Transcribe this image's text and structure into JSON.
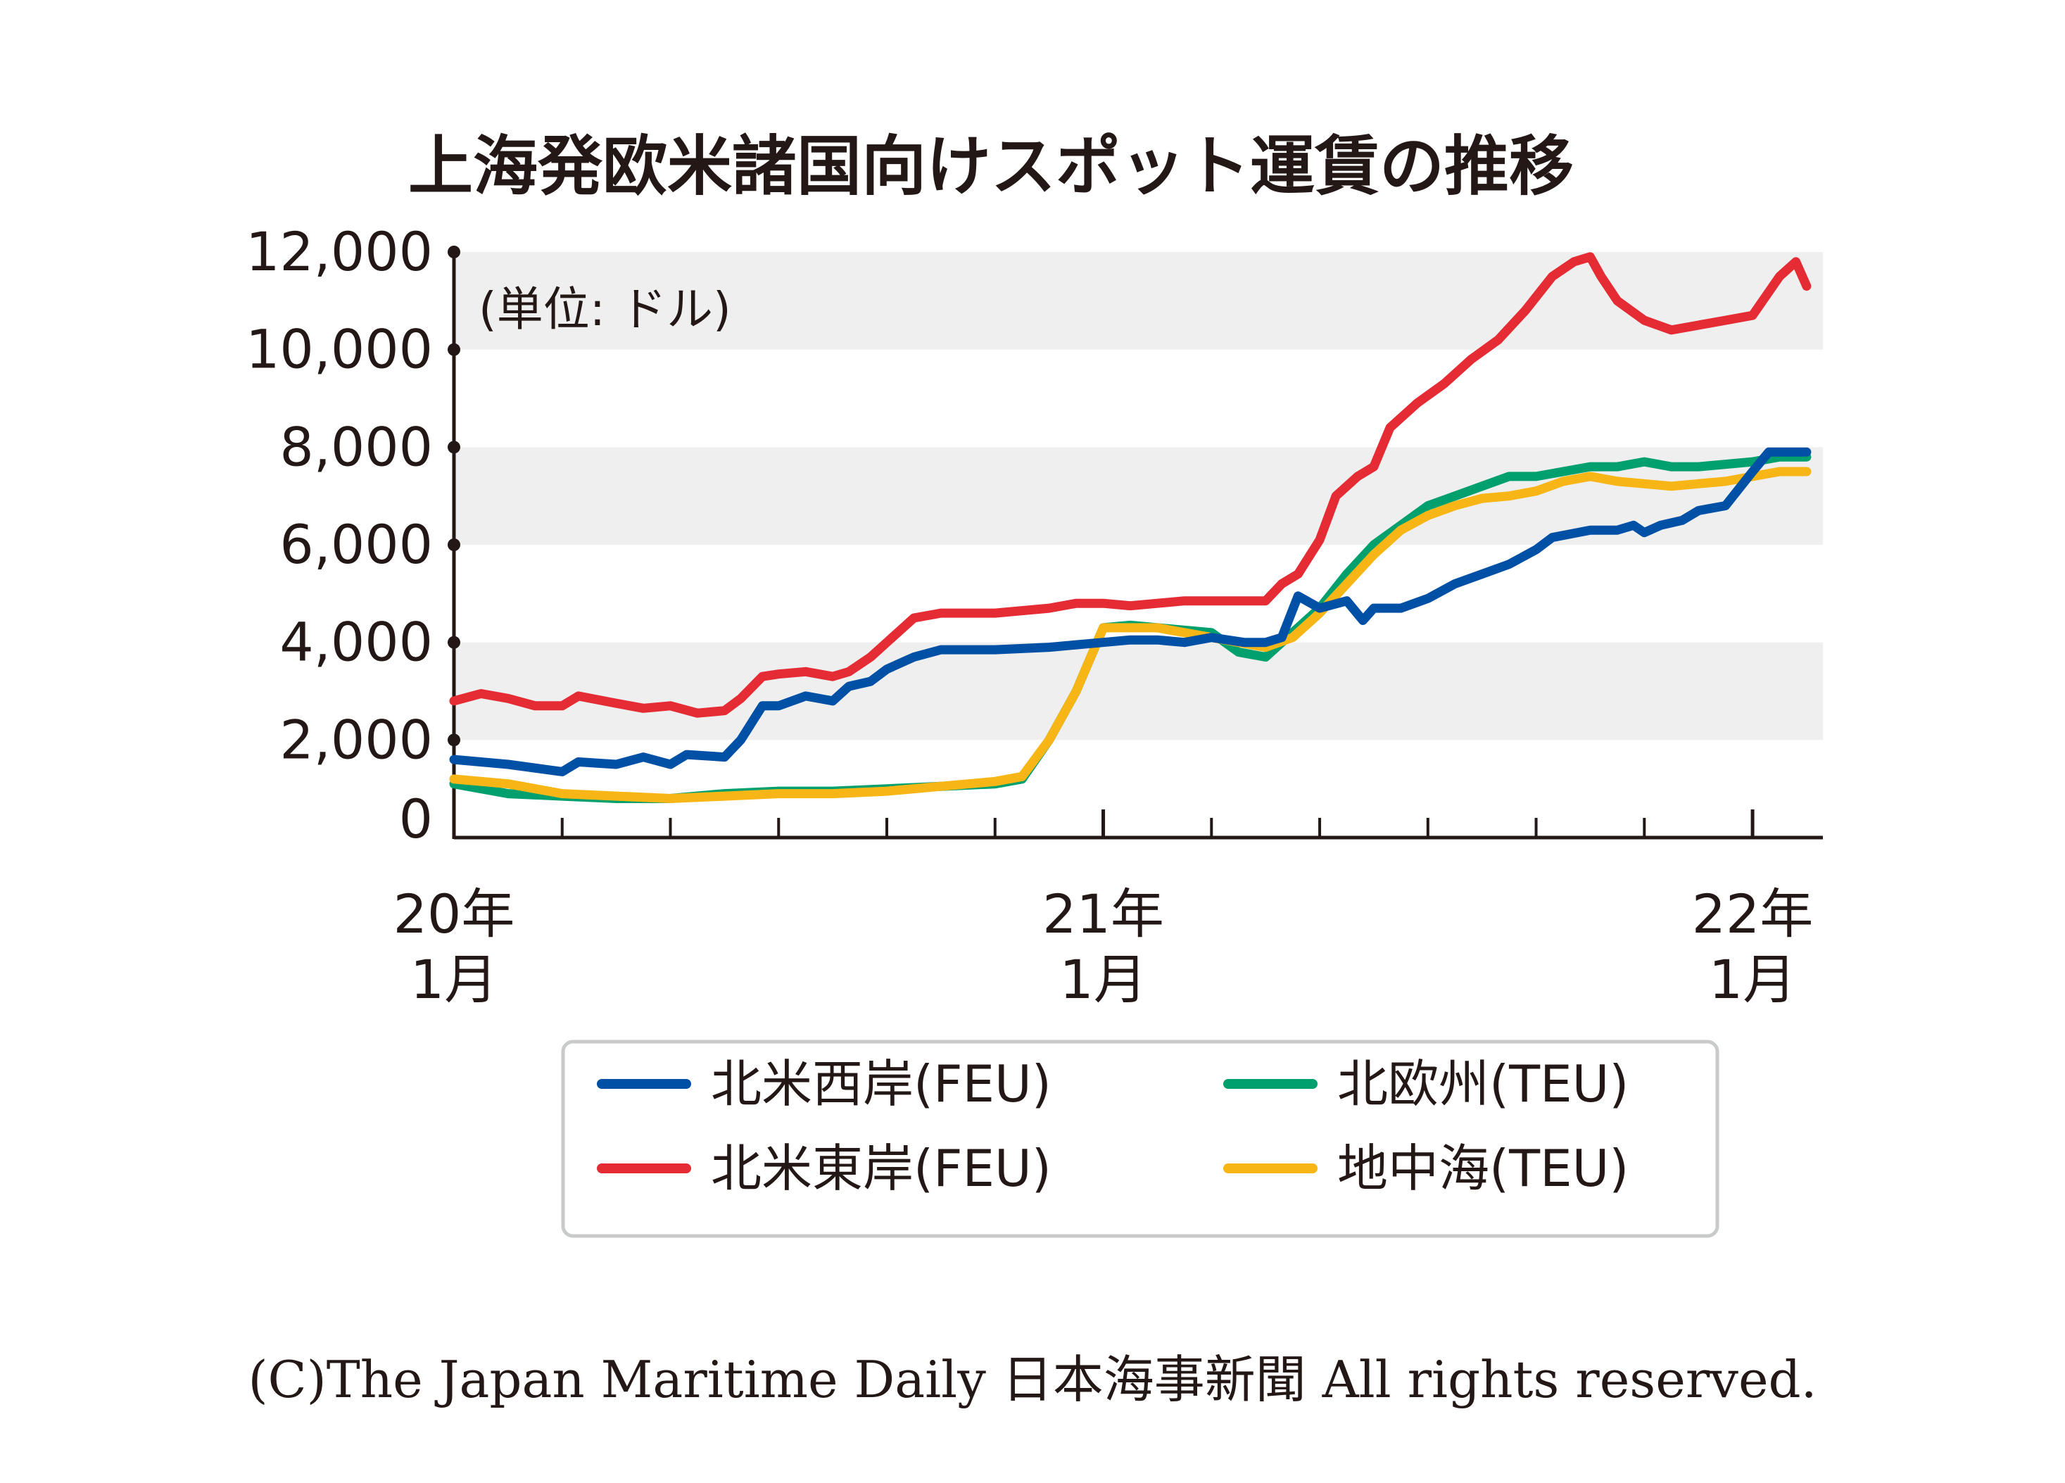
{
  "chart_data": {
    "type": "line",
    "title": "上海発欧米諸国向けスポット運賃の推移",
    "unit_note": "(単位: ドル)",
    "xlabel": "",
    "ylabel": "",
    "ylim": [
      0,
      12000
    ],
    "xlim": [
      0,
      25.3
    ],
    "x_unit": "months since 2020-01",
    "y_ticks": [
      0,
      2000,
      4000,
      6000,
      8000,
      10000,
      12000
    ],
    "y_tick_labels": [
      "0",
      "2,000",
      "4,000",
      "6,000",
      "8,000",
      "10,000",
      "12,000"
    ],
    "x_ticks_minor": [
      0,
      2,
      4,
      6,
      8,
      10,
      12,
      14,
      16,
      18,
      20,
      22,
      24
    ],
    "x_tick_labels": [
      {
        "x": 0,
        "year": "20年",
        "month": "1月"
      },
      {
        "x": 12,
        "year": "21年",
        "month": "1月"
      },
      {
        "x": 24,
        "year": "22年",
        "month": "1月"
      }
    ],
    "grid_bands": [
      [
        2000,
        4000
      ],
      [
        6000,
        8000
      ],
      [
        10000,
        12000
      ]
    ],
    "legend_position": "bottom",
    "series": [
      {
        "name": "北米西岸(FEU)",
        "color": "#0050a5",
        "points": [
          [
            0,
            1600
          ],
          [
            1,
            1500
          ],
          [
            2,
            1350
          ],
          [
            2.3,
            1550
          ],
          [
            3,
            1500
          ],
          [
            3.5,
            1650
          ],
          [
            4,
            1500
          ],
          [
            4.3,
            1700
          ],
          [
            5,
            1650
          ],
          [
            5.3,
            2000
          ],
          [
            5.7,
            2700
          ],
          [
            6,
            2700
          ],
          [
            6.5,
            2900
          ],
          [
            7,
            2800
          ],
          [
            7.3,
            3100
          ],
          [
            7.7,
            3200
          ],
          [
            8,
            3450
          ],
          [
            8.5,
            3700
          ],
          [
            9,
            3850
          ],
          [
            10,
            3850
          ],
          [
            11,
            3900
          ],
          [
            11.5,
            3950
          ],
          [
            12,
            4000
          ],
          [
            12.5,
            4050
          ],
          [
            13,
            4050
          ],
          [
            13.5,
            4000
          ],
          [
            14,
            4100
          ],
          [
            14.3,
            4050
          ],
          [
            14.6,
            4000
          ],
          [
            15,
            4000
          ],
          [
            15.3,
            4100
          ],
          [
            15.6,
            4950
          ],
          [
            16,
            4700
          ],
          [
            16.5,
            4850
          ],
          [
            16.8,
            4450
          ],
          [
            17,
            4700
          ],
          [
            17.5,
            4700
          ],
          [
            18,
            4900
          ],
          [
            18.5,
            5200
          ],
          [
            19,
            5400
          ],
          [
            19.5,
            5600
          ],
          [
            20,
            5900
          ],
          [
            20.3,
            6150
          ],
          [
            21,
            6300
          ],
          [
            21.5,
            6300
          ],
          [
            21.8,
            6400
          ],
          [
            22,
            6250
          ],
          [
            22.3,
            6400
          ],
          [
            22.7,
            6500
          ],
          [
            23,
            6700
          ],
          [
            23.5,
            6800
          ],
          [
            24,
            7500
          ],
          [
            24.3,
            7900
          ],
          [
            24.7,
            7900
          ],
          [
            25,
            7900
          ]
        ]
      },
      {
        "name": "北米東岸(FEU)",
        "color": "#e52b34",
        "points": [
          [
            0,
            2800
          ],
          [
            0.5,
            2950
          ],
          [
            1,
            2850
          ],
          [
            1.5,
            2700
          ],
          [
            2,
            2700
          ],
          [
            2.3,
            2900
          ],
          [
            3,
            2750
          ],
          [
            3.5,
            2650
          ],
          [
            4,
            2700
          ],
          [
            4.5,
            2550
          ],
          [
            5,
            2600
          ],
          [
            5.3,
            2850
          ],
          [
            5.7,
            3300
          ],
          [
            6,
            3350
          ],
          [
            6.5,
            3400
          ],
          [
            7,
            3300
          ],
          [
            7.3,
            3400
          ],
          [
            7.7,
            3700
          ],
          [
            8,
            4000
          ],
          [
            8.5,
            4500
          ],
          [
            9,
            4600
          ],
          [
            10,
            4600
          ],
          [
            11,
            4700
          ],
          [
            11.5,
            4800
          ],
          [
            12,
            4800
          ],
          [
            12.5,
            4750
          ],
          [
            13,
            4800
          ],
          [
            13.5,
            4850
          ],
          [
            14,
            4850
          ],
          [
            14.5,
            4850
          ],
          [
            15,
            4850
          ],
          [
            15.3,
            5200
          ],
          [
            15.6,
            5400
          ],
          [
            16,
            6100
          ],
          [
            16.3,
            7000
          ],
          [
            16.7,
            7400
          ],
          [
            17,
            7600
          ],
          [
            17.3,
            8400
          ],
          [
            17.8,
            8900
          ],
          [
            18.3,
            9300
          ],
          [
            18.8,
            9800
          ],
          [
            19.3,
            10200
          ],
          [
            19.8,
            10800
          ],
          [
            20.3,
            11500
          ],
          [
            20.7,
            11800
          ],
          [
            21,
            11900
          ],
          [
            21.2,
            11500
          ],
          [
            21.5,
            11000
          ],
          [
            22,
            10600
          ],
          [
            22.5,
            10400
          ],
          [
            23,
            10500
          ],
          [
            23.5,
            10600
          ],
          [
            24,
            10700
          ],
          [
            24.5,
            11500
          ],
          [
            24.8,
            11800
          ],
          [
            25,
            11300
          ]
        ]
      },
      {
        "name": "北欧州(TEU)",
        "color": "#00a06e",
        "points": [
          [
            0,
            1100
          ],
          [
            1,
            900
          ],
          [
            2,
            850
          ],
          [
            3,
            800
          ],
          [
            4,
            800
          ],
          [
            5,
            900
          ],
          [
            6,
            950
          ],
          [
            7,
            950
          ],
          [
            8,
            1000
          ],
          [
            9,
            1050
          ],
          [
            10,
            1100
          ],
          [
            10.5,
            1200
          ],
          [
            11,
            2000
          ],
          [
            11.5,
            3000
          ],
          [
            12,
            4300
          ],
          [
            12.5,
            4350
          ],
          [
            13,
            4300
          ],
          [
            14,
            4200
          ],
          [
            14.5,
            3800
          ],
          [
            15,
            3700
          ],
          [
            15.5,
            4200
          ],
          [
            16,
            4700
          ],
          [
            16.5,
            5400
          ],
          [
            17,
            6000
          ],
          [
            17.5,
            6400
          ],
          [
            18,
            6800
          ],
          [
            18.5,
            7000
          ],
          [
            19,
            7200
          ],
          [
            19.5,
            7400
          ],
          [
            20,
            7400
          ],
          [
            20.5,
            7500
          ],
          [
            21,
            7600
          ],
          [
            21.5,
            7600
          ],
          [
            22,
            7700
          ],
          [
            22.5,
            7600
          ],
          [
            23,
            7600
          ],
          [
            23.5,
            7650
          ],
          [
            24,
            7700
          ],
          [
            24.5,
            7800
          ],
          [
            25,
            7800
          ]
        ]
      },
      {
        "name": "地中海(TEU)",
        "color": "#f7b615",
        "points": [
          [
            0,
            1200
          ],
          [
            1,
            1100
          ],
          [
            2,
            900
          ],
          [
            3,
            850
          ],
          [
            4,
            800
          ],
          [
            5,
            850
          ],
          [
            6,
            900
          ],
          [
            7,
            900
          ],
          [
            8,
            950
          ],
          [
            9,
            1050
          ],
          [
            10,
            1150
          ],
          [
            10.5,
            1250
          ],
          [
            11,
            2000
          ],
          [
            11.5,
            3000
          ],
          [
            12,
            4300
          ],
          [
            12.5,
            4300
          ],
          [
            13,
            4300
          ],
          [
            14,
            4100
          ],
          [
            14.5,
            4000
          ],
          [
            15,
            3900
          ],
          [
            15.5,
            4100
          ],
          [
            16,
            4600
          ],
          [
            16.5,
            5200
          ],
          [
            17,
            5800
          ],
          [
            17.5,
            6300
          ],
          [
            18,
            6600
          ],
          [
            18.5,
            6800
          ],
          [
            19,
            6950
          ],
          [
            19.5,
            7000
          ],
          [
            20,
            7100
          ],
          [
            20.5,
            7300
          ],
          [
            21,
            7400
          ],
          [
            21.5,
            7300
          ],
          [
            22,
            7250
          ],
          [
            22.5,
            7200
          ],
          [
            23,
            7250
          ],
          [
            23.5,
            7300
          ],
          [
            24,
            7400
          ],
          [
            24.5,
            7500
          ],
          [
            25,
            7500
          ]
        ]
      }
    ]
  },
  "legend": {
    "items": [
      {
        "label": "北米西岸(FEU)",
        "color": "#0050a5"
      },
      {
        "label": "北米東岸(FEU)",
        "color": "#e52b34"
      },
      {
        "label": "北欧州(TEU)",
        "color": "#00a06e"
      },
      {
        "label": "地中海(TEU)",
        "color": "#f7b615"
      }
    ]
  },
  "footer": {
    "copyright": "(C)The Japan Maritime Daily 日本海事新聞 All rights reserved."
  }
}
